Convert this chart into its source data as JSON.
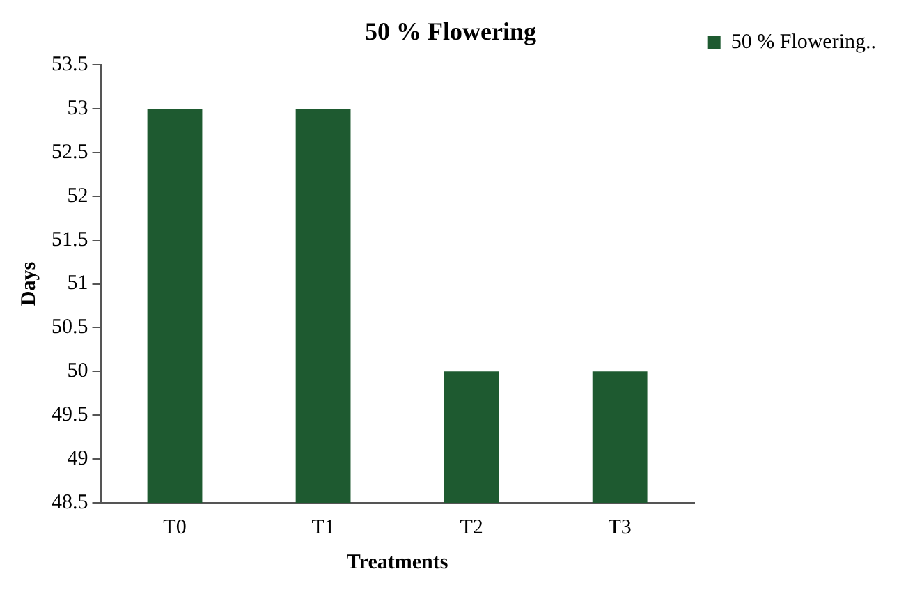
{
  "chart_data": {
    "type": "bar",
    "title": "50 % Flowering",
    "xlabel": "Treatments",
    "ylabel": "Days",
    "categories": [
      "T0",
      "T1",
      "T2",
      "T3"
    ],
    "series": [
      {
        "name": "50 % Flowering..",
        "color": "#1e5a30",
        "values": [
          53,
          53,
          50,
          50
        ]
      }
    ],
    "ylim": [
      48.5,
      53.5
    ],
    "yticks": [
      48.5,
      49,
      49.5,
      50,
      50.5,
      51,
      51.5,
      52,
      52.5,
      53,
      53.5
    ],
    "grid": false,
    "legend": "top right"
  }
}
